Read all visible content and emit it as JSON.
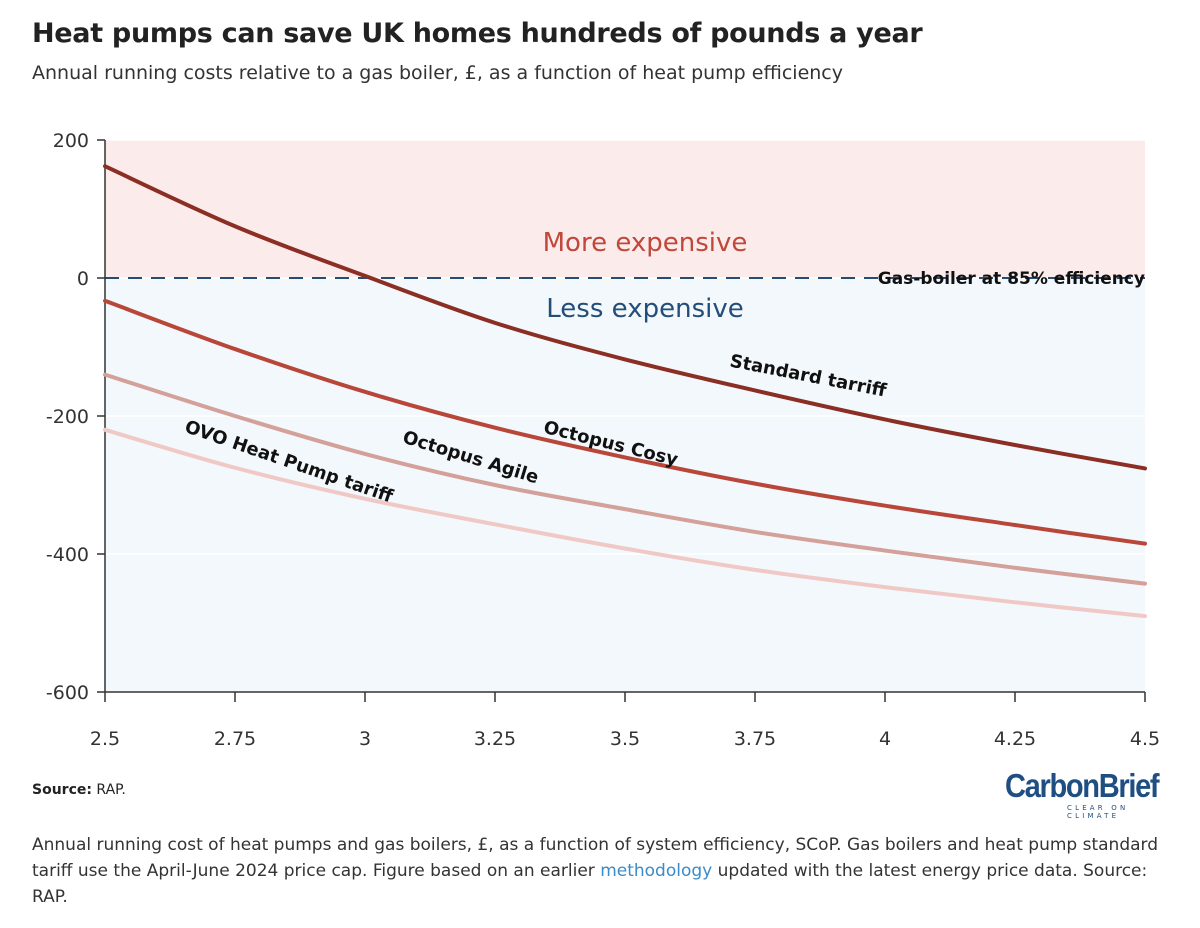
{
  "header": {
    "title": "Heat pumps can save UK homes hundreds of pounds a year",
    "subtitle": "Annual running costs relative to a gas boiler, £, as a function of heat pump efficiency"
  },
  "footer": {
    "source_label": "Source:",
    "source_value": "RAP.",
    "logo_text": "CarbonBrief",
    "logo_tagline": "CLEAR ON CLIMATE",
    "caption_part1": "Annual running cost of heat pumps and gas boilers, £, as a function of system efficiency, SCoP. Gas boilers and heat pump standard tariff use the April-June 2024 price cap. Figure based on an earlier ",
    "caption_link": "methodology",
    "caption_part2": " updated with the latest energy price data. Source: RAP."
  },
  "chart_data": {
    "type": "line",
    "title": "Heat pumps can save UK homes hundreds of pounds a year",
    "subtitle": "Annual running costs relative to a gas boiler, £, as a function of heat pump efficiency",
    "xlabel": "",
    "ylabel": "",
    "xlim": [
      2.5,
      4.5
    ],
    "ylim": [
      -600,
      200
    ],
    "x_ticks": [
      "2.5",
      "2.75",
      "3",
      "3.25",
      "3.5",
      "3.75",
      "4",
      "4.25",
      "4.5"
    ],
    "y_ticks": [
      "200",
      "0",
      "-200",
      "-400",
      "-600"
    ],
    "regions": [
      {
        "label": "More expensive",
        "from": 0,
        "to": 200,
        "color": "#fcebeb",
        "text_color": "#c0473a"
      },
      {
        "label": "Less expensive",
        "from": -600,
        "to": 0,
        "color": "#f2f8fb",
        "text_color": "#244d77"
      }
    ],
    "reference_line": {
      "label": "Gas-boiler at 85% efficiency",
      "y": 0,
      "color": "#244d77"
    },
    "x": [
      2.5,
      2.75,
      3,
      3.25,
      3.5,
      3.75,
      4,
      4.25,
      4.5
    ],
    "series": [
      {
        "name": "Standard tarriff",
        "color": "#8b2e24",
        "values": [
          162,
          75,
          3,
          -65,
          -118,
          -163,
          -205,
          -242,
          -276
        ]
      },
      {
        "name": "Octopus Cosy",
        "color": "#b8473a",
        "values": [
          -33,
          -103,
          -165,
          -217,
          -260,
          -298,
          -330,
          -358,
          -385
        ]
      },
      {
        "name": "Octopus Agile",
        "color": "#d3a09a",
        "values": [
          -140,
          -200,
          -255,
          -300,
          -335,
          -368,
          -395,
          -420,
          -443
        ]
      },
      {
        "name": "OVO Heat Pump tariff",
        "color": "#f0c9c6",
        "values": [
          -220,
          -275,
          -320,
          -357,
          -392,
          -423,
          -448,
          -470,
          -490
        ]
      }
    ],
    "series_labels": [
      {
        "series": 0,
        "x": 3.85,
        "y": -150,
        "angle": 11
      },
      {
        "series": 1,
        "x": 3.47,
        "y": -248,
        "angle": 14
      },
      {
        "series": 2,
        "x": 3.2,
        "y": -268,
        "angle": 17
      },
      {
        "series": 3,
        "x": 2.85,
        "y": -274,
        "angle": 19
      }
    ]
  }
}
